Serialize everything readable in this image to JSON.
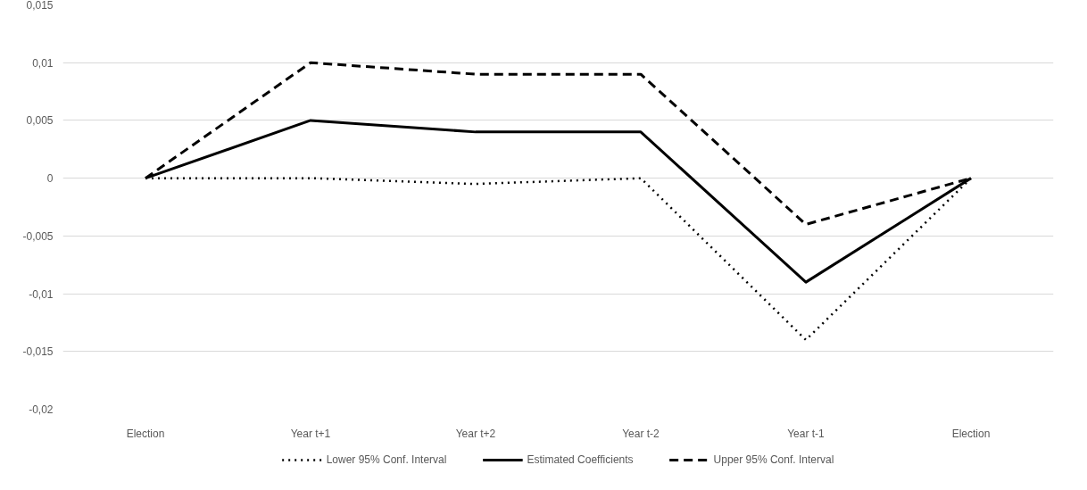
{
  "chart_data": {
    "type": "line",
    "categories": [
      "Election",
      "Year t+1",
      "Year t+2",
      "Year t-2",
      "Year t-1",
      "Election"
    ],
    "series": [
      {
        "name": "Lower 95% Conf. Interval",
        "color": "#000000",
        "line_style": "dotted",
        "values": [
          0,
          0,
          -0.0005,
          0,
          -0.014,
          0
        ]
      },
      {
        "name": "Estimated Coefficients",
        "color": "#000000",
        "line_style": "solid",
        "values": [
          0,
          0.005,
          0.004,
          0.004,
          -0.009,
          0
        ]
      },
      {
        "name": "Upper 95% Conf. Interval",
        "color": "#000000",
        "line_style": "dashed",
        "values": [
          0,
          0.01,
          0.009,
          0.009,
          -0.004,
          0
        ]
      }
    ],
    "ylim": [
      -0.02,
      0.015
    ],
    "yticks": [
      {
        "value": -0.02,
        "label": "-0,02"
      },
      {
        "value": -0.015,
        "label": "-0,015"
      },
      {
        "value": -0.01,
        "label": "-0,01"
      },
      {
        "value": -0.005,
        "label": "-0,005"
      },
      {
        "value": 0,
        "label": "0"
      },
      {
        "value": 0.005,
        "label": "0,005"
      },
      {
        "value": 0.01,
        "label": "0,01"
      },
      {
        "value": 0.015,
        "label": "0,015"
      }
    ],
    "grid": "y",
    "legend": "bottom",
    "marker": "none"
  }
}
